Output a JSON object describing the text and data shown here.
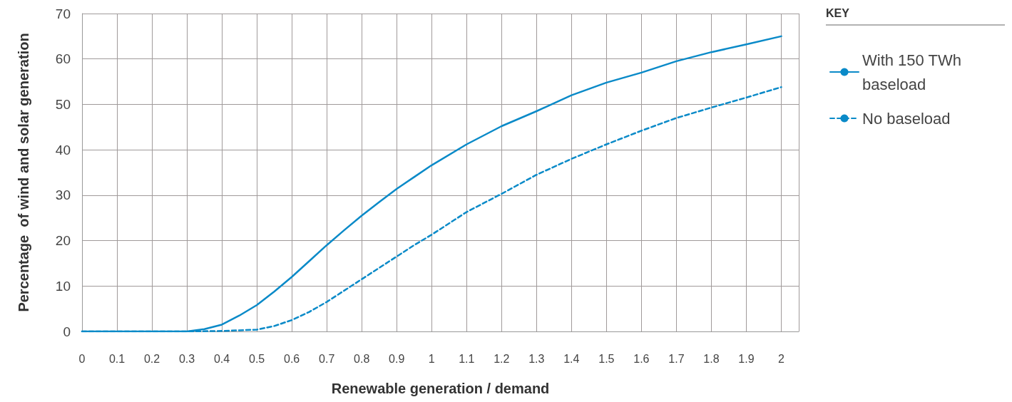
{
  "chart_data": {
    "type": "line",
    "xlabel": "Renewable generation / demand",
    "ylabel": "Percentage  of wind and solar generation",
    "legend_title": "KEY",
    "legend": "right",
    "grid": true,
    "marker": "none",
    "xlim": [
      0,
      2.05
    ],
    "xticks": [
      0,
      0.1,
      0.2,
      0.3,
      0.4,
      0.5,
      0.6,
      0.7,
      0.8,
      0.9,
      1,
      1.1,
      1.2,
      1.3,
      1.4,
      1.5,
      1.6,
      1.7,
      1.8,
      1.9,
      2
    ],
    "ylim": [
      0,
      70
    ],
    "yticks": [
      0,
      10,
      20,
      30,
      40,
      50,
      60,
      70
    ],
    "series": [
      {
        "name": "With 150 TWh baseload",
        "color": "#0a8ac8",
        "line_style": "solid",
        "x": [
          0,
          0.1,
          0.2,
          0.25,
          0.3,
          0.35,
          0.4,
          0.45,
          0.5,
          0.55,
          0.6,
          0.65,
          0.7,
          0.75,
          0.8,
          0.85,
          0.9,
          0.95,
          1,
          1.1,
          1.2,
          1.3,
          1.4,
          1.5,
          1.6,
          1.7,
          1.8,
          1.9,
          2
        ],
        "values": [
          0,
          0,
          0,
          0,
          0,
          0.5,
          1.5,
          3.5,
          5.8,
          8.8,
          12,
          15.5,
          19,
          22.3,
          25.5,
          28.5,
          31.4,
          34,
          36.6,
          41.2,
          45.2,
          48.5,
          52,
          54.8,
          57,
          59.5,
          61.5,
          63.2,
          65
        ]
      },
      {
        "name": "No baseload",
        "color": "#0a8ac8",
        "line_style": "dashed",
        "x": [
          0,
          0.1,
          0.2,
          0.3,
          0.4,
          0.5,
          0.55,
          0.6,
          0.65,
          0.7,
          0.75,
          0.8,
          0.85,
          0.9,
          0.95,
          1,
          1.1,
          1.2,
          1.3,
          1.4,
          1.5,
          1.6,
          1.7,
          1.8,
          1.9,
          2
        ],
        "values": [
          0,
          0,
          0,
          0,
          0.1,
          0.4,
          1.2,
          2.5,
          4.3,
          6.5,
          9,
          11.5,
          14,
          16.5,
          19,
          21.3,
          26.3,
          30.3,
          34.5,
          38,
          41.2,
          44.2,
          47,
          49.3,
          51.5,
          53.8
        ]
      }
    ]
  }
}
